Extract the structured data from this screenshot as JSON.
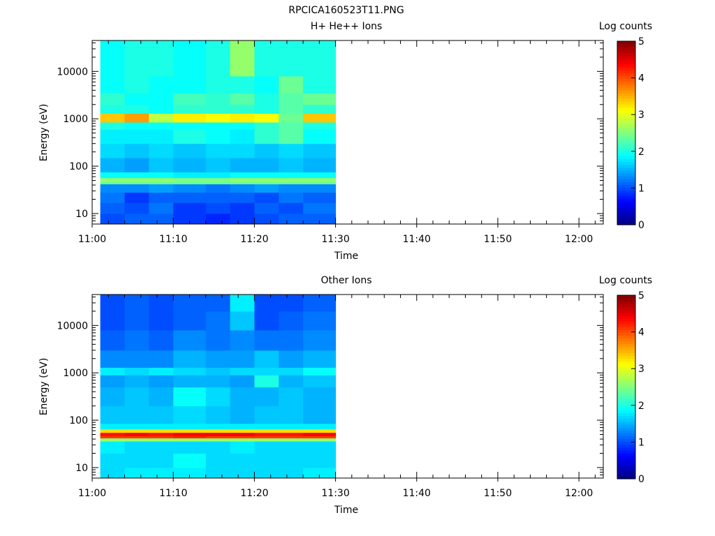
{
  "figure_title": "RPCICA160523T11.PNG",
  "chart_data": [
    {
      "type": "heatmap",
      "title": "H+ He++ Ions",
      "xlabel": "Time",
      "ylabel": "Energy (eV)",
      "colorbar_label": "Log counts",
      "y_scale": "log",
      "ylim": [
        6,
        45000
      ],
      "x_range": [
        "11:00",
        "12:03"
      ],
      "x_ticks": [
        "11:00",
        "11:10",
        "11:20",
        "11:30",
        "11:40",
        "11:50",
        "12:00"
      ],
      "y_ticks": [
        "10",
        "100",
        "1000",
        "10000"
      ],
      "colorbar_ticks": [
        "0",
        "1",
        "2",
        "3",
        "4",
        "5"
      ],
      "clim": [
        0,
        5
      ],
      "data_time_range": [
        "11:01",
        "11:30"
      ],
      "time_bins": [
        "11:01",
        "11:04",
        "11:07",
        "11:10",
        "11:14",
        "11:17",
        "11:20",
        "11:23",
        "11:26"
      ],
      "energy_bands": [
        {
          "range_eV": [
            6,
            10
          ],
          "log_counts": [
            1.0,
            1.1,
            1.1,
            0.9,
            0.8,
            0.9,
            1.0,
            1.1,
            1.1
          ]
        },
        {
          "range_eV": [
            10,
            17
          ],
          "log_counts": [
            1.1,
            1.0,
            1.2,
            0.9,
            1.0,
            0.9,
            1.1,
            1.0,
            1.2
          ]
        },
        {
          "range_eV": [
            17,
            28
          ],
          "log_counts": [
            1.2,
            0.9,
            1.1,
            1.1,
            1.1,
            1.1,
            1.0,
            1.2,
            1.1
          ]
        },
        {
          "range_eV": [
            28,
            42
          ],
          "log_counts": [
            1.3,
            1.3,
            1.4,
            1.3,
            1.2,
            1.3,
            1.4,
            1.3,
            1.3
          ]
        },
        {
          "range_eV": [
            42,
            47
          ],
          "log_counts": [
            2.4,
            2.4,
            2.4,
            2.4,
            2.4,
            2.4,
            2.4,
            2.4,
            2.4
          ]
        },
        {
          "range_eV": [
            47,
            57
          ],
          "log_counts": [
            2.6,
            2.6,
            2.6,
            2.5,
            2.5,
            2.6,
            2.6,
            2.6,
            2.6
          ]
        },
        {
          "range_eV": [
            57,
            75
          ],
          "log_counts": [
            1.9,
            1.9,
            1.9,
            1.8,
            1.8,
            1.9,
            1.9,
            1.9,
            1.9
          ]
        },
        {
          "range_eV": [
            75,
            150
          ],
          "log_counts": [
            1.5,
            1.4,
            1.6,
            1.5,
            1.6,
            1.5,
            1.5,
            1.6,
            1.5
          ]
        },
        {
          "range_eV": [
            150,
            300
          ],
          "log_counts": [
            1.7,
            1.6,
            1.7,
            1.6,
            1.7,
            1.7,
            1.6,
            1.7,
            1.6
          ]
        },
        {
          "range_eV": [
            300,
            600
          ],
          "log_counts": [
            1.8,
            1.8,
            1.8,
            2.0,
            1.9,
            1.8,
            2.1,
            2.3,
            1.9
          ]
        },
        {
          "range_eV": [
            600,
            850
          ],
          "log_counts": [
            2.0,
            1.9,
            1.9,
            1.9,
            1.9,
            1.9,
            2.1,
            2.3,
            2.0
          ]
        },
        {
          "range_eV": [
            850,
            1300
          ],
          "log_counts": [
            3.4,
            3.6,
            2.8,
            3.2,
            3.1,
            3.2,
            3.1,
            2.4,
            3.4
          ]
        },
        {
          "range_eV": [
            1300,
            2000
          ],
          "log_counts": [
            2.0,
            2.0,
            1.9,
            2.1,
            2.1,
            2.1,
            2.0,
            2.3,
            2.1
          ]
        },
        {
          "range_eV": [
            2000,
            3500
          ],
          "log_counts": [
            2.1,
            1.9,
            1.9,
            2.2,
            2.1,
            2.3,
            2.0,
            2.3,
            2.4
          ]
        },
        {
          "range_eV": [
            3500,
            8000
          ],
          "log_counts": [
            1.9,
            2.0,
            1.9,
            1.9,
            2.0,
            2.0,
            1.9,
            2.4,
            2.0
          ]
        },
        {
          "range_eV": [
            8000,
            20000
          ],
          "log_counts": [
            1.9,
            2.0,
            2.0,
            1.9,
            2.0,
            2.6,
            2.0,
            2.0,
            2.0
          ]
        },
        {
          "range_eV": [
            20000,
            45000
          ],
          "log_counts": [
            1.9,
            2.0,
            2.0,
            1.9,
            2.0,
            2.6,
            2.0,
            2.0,
            2.0
          ]
        }
      ]
    },
    {
      "type": "heatmap",
      "title": "Other Ions",
      "xlabel": "Time",
      "ylabel": "Energy (eV)",
      "colorbar_label": "Log counts",
      "y_scale": "log",
      "ylim": [
        6,
        45000
      ],
      "x_range": [
        "11:00",
        "12:03"
      ],
      "x_ticks": [
        "11:00",
        "11:10",
        "11:20",
        "11:30",
        "11:40",
        "11:50",
        "12:00"
      ],
      "y_ticks": [
        "10",
        "100",
        "1000",
        "10000"
      ],
      "colorbar_ticks": [
        "0",
        "1",
        "2",
        "3",
        "4",
        "5"
      ],
      "clim": [
        0,
        5
      ],
      "data_time_range": [
        "11:01",
        "11:30"
      ],
      "time_bins": [
        "11:01",
        "11:04",
        "11:07",
        "11:10",
        "11:14",
        "11:17",
        "11:20",
        "11:23",
        "11:26"
      ],
      "energy_bands": [
        {
          "range_eV": [
            6,
            10
          ],
          "log_counts": [
            1.7,
            1.8,
            1.8,
            1.8,
            1.7,
            1.7,
            1.7,
            1.7,
            1.8
          ]
        },
        {
          "range_eV": [
            10,
            20
          ],
          "log_counts": [
            1.7,
            1.7,
            1.7,
            1.9,
            1.7,
            1.7,
            1.7,
            1.7,
            1.7
          ]
        },
        {
          "range_eV": [
            20,
            36
          ],
          "log_counts": [
            1.8,
            1.7,
            1.7,
            1.7,
            1.7,
            1.8,
            1.7,
            1.7,
            1.7
          ]
        },
        {
          "range_eV": [
            36,
            42
          ],
          "log_counts": [
            2.6,
            2.6,
            2.6,
            2.6,
            2.6,
            2.6,
            2.6,
            2.6,
            2.6
          ]
        },
        {
          "range_eV": [
            42,
            47
          ],
          "log_counts": [
            4.1,
            4.1,
            4.1,
            4.2,
            4.1,
            4.1,
            4.1,
            4.1,
            4.1
          ]
        },
        {
          "range_eV": [
            47,
            55
          ],
          "log_counts": [
            4.3,
            4.4,
            4.3,
            4.4,
            4.4,
            4.4,
            4.3,
            4.3,
            4.4
          ]
        },
        {
          "range_eV": [
            55,
            65
          ],
          "log_counts": [
            3.3,
            3.3,
            3.3,
            3.3,
            3.3,
            3.3,
            3.3,
            3.3,
            3.3
          ]
        },
        {
          "range_eV": [
            65,
            85
          ],
          "log_counts": [
            1.8,
            1.8,
            1.8,
            1.8,
            1.8,
            1.8,
            1.8,
            1.8,
            1.8
          ]
        },
        {
          "range_eV": [
            85,
            200
          ],
          "log_counts": [
            1.6,
            1.6,
            1.6,
            1.7,
            1.6,
            1.5,
            1.6,
            1.6,
            1.5
          ]
        },
        {
          "range_eV": [
            200,
            500
          ],
          "log_counts": [
            1.5,
            1.6,
            1.5,
            1.9,
            1.7,
            1.5,
            1.5,
            1.6,
            1.5
          ]
        },
        {
          "range_eV": [
            500,
            900
          ],
          "log_counts": [
            1.4,
            1.5,
            1.4,
            1.5,
            1.5,
            1.4,
            2.0,
            1.5,
            1.6
          ]
        },
        {
          "range_eV": [
            900,
            1300
          ],
          "log_counts": [
            1.8,
            1.7,
            1.8,
            1.7,
            1.6,
            1.7,
            1.7,
            1.7,
            1.9
          ]
        },
        {
          "range_eV": [
            1300,
            3000
          ],
          "log_counts": [
            1.3,
            1.3,
            1.3,
            1.5,
            1.4,
            1.4,
            1.6,
            1.4,
            1.5
          ]
        },
        {
          "range_eV": [
            3000,
            8000
          ],
          "log_counts": [
            1.1,
            1.2,
            1.1,
            1.3,
            1.2,
            1.3,
            1.2,
            1.2,
            1.3
          ]
        },
        {
          "range_eV": [
            8000,
            20000
          ],
          "log_counts": [
            1.0,
            1.1,
            1.0,
            1.1,
            1.2,
            1.6,
            1.0,
            1.1,
            1.2
          ]
        },
        {
          "range_eV": [
            20000,
            45000
          ],
          "log_counts": [
            1.0,
            1.1,
            1.0,
            1.1,
            1.1,
            1.8,
            1.0,
            1.0,
            1.1
          ]
        }
      ]
    }
  ]
}
